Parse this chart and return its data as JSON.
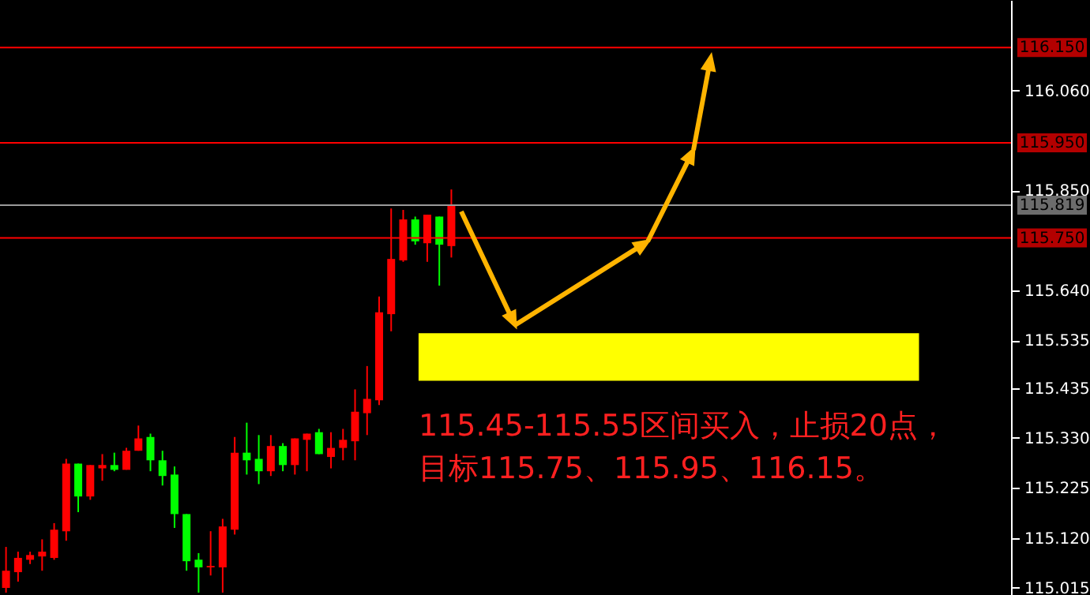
{
  "chart_data": {
    "type": "candlestick",
    "categories": [
      null,
      null,
      null,
      null,
      null,
      null,
      null,
      null,
      null,
      null,
      null,
      null,
      null,
      null,
      null,
      null,
      null,
      null,
      null,
      null,
      null,
      null,
      null,
      null,
      null,
      null,
      null,
      null,
      null,
      null,
      null,
      null,
      null,
      null,
      null,
      null,
      null,
      null,
      null,
      null,
      null,
      null,
      null,
      null,
      null,
      null,
      null,
      null,
      null,
      null,
      null,
      null,
      null,
      null,
      null,
      null,
      null,
      null,
      null,
      null,
      null,
      null,
      null,
      null,
      null,
      null,
      null,
      null,
      null,
      null,
      null,
      null,
      null,
      null,
      null,
      null,
      null,
      null,
      null,
      null,
      null,
      null,
      null,
      null
    ],
    "ohlc": [
      [
        115.015,
        115.101,
        115.005,
        115.051
      ],
      [
        115.048,
        115.091,
        115.028,
        115.078
      ],
      [
        115.074,
        115.091,
        115.065,
        115.084
      ],
      [
        115.081,
        115.117,
        115.051,
        115.091
      ],
      [
        115.078,
        115.151,
        115.074,
        115.137
      ],
      [
        115.134,
        115.286,
        115.114,
        115.276
      ],
      [
        115.276,
        115.276,
        115.174,
        115.207
      ],
      [
        115.207,
        115.273,
        115.2,
        115.273
      ],
      [
        115.266,
        115.296,
        115.24,
        115.273
      ],
      [
        115.273,
        115.299,
        115.26,
        115.263
      ],
      [
        115.263,
        115.309,
        115.263,
        115.303
      ],
      [
        115.303,
        115.356,
        115.303,
        115.329
      ],
      [
        115.332,
        115.339,
        115.26,
        115.283
      ],
      [
        115.283,
        115.303,
        115.23,
        115.25
      ],
      [
        115.253,
        115.27,
        115.141,
        115.17
      ],
      [
        115.17,
        115.17,
        115.051,
        115.071
      ],
      [
        115.074,
        115.088,
        115.005,
        115.058
      ],
      [
        115.058,
        115.134,
        115.041,
        115.061
      ],
      [
        115.058,
        115.16,
        115.005,
        115.144
      ],
      [
        115.137,
        115.332,
        115.127,
        115.299
      ],
      [
        115.299,
        115.362,
        115.253,
        115.283
      ],
      [
        115.286,
        115.336,
        115.233,
        115.26
      ],
      [
        115.26,
        115.336,
        115.25,
        115.313
      ],
      [
        115.313,
        115.319,
        115.26,
        115.273
      ],
      [
        115.273,
        115.329,
        115.253,
        115.329
      ],
      [
        115.326,
        115.339,
        115.26,
        115.339
      ],
      [
        115.342,
        115.349,
        115.296,
        115.296
      ],
      [
        115.29,
        115.342,
        115.266,
        115.309
      ],
      [
        115.309,
        115.349,
        115.283,
        115.326
      ],
      [
        115.323,
        115.432,
        115.283,
        115.385
      ],
      [
        115.382,
        115.481,
        115.336,
        115.412
      ],
      [
        115.409,
        115.627,
        115.399,
        115.594
      ],
      [
        115.59,
        115.812,
        115.554,
        115.706
      ],
      [
        115.703,
        115.809,
        115.7,
        115.789
      ],
      [
        115.789,
        115.795,
        115.736,
        115.743
      ],
      [
        115.739,
        115.799,
        115.7,
        115.799
      ],
      [
        115.795,
        115.795,
        115.65,
        115.736
      ],
      [
        115.733,
        115.852,
        115.709,
        115.819
      ],
      null,
      null,
      null,
      null,
      null,
      null,
      null,
      null,
      null,
      null,
      null,
      null,
      null,
      null,
      null,
      null,
      null,
      null,
      null,
      null,
      null,
      null,
      null,
      null,
      null,
      null,
      null,
      null,
      null,
      null,
      null,
      null,
      null,
      null,
      null,
      null,
      null,
      null,
      null,
      null,
      null,
      null,
      null,
      null,
      null,
      null
    ],
    "colors": [
      "#ff0000",
      "#ff0000",
      "#ff0000",
      "#ff0000",
      "#ff0000",
      "#ff0000",
      "#00ff00",
      "#ff0000",
      "#ff0000",
      "#00ff00",
      "#ff0000",
      "#ff0000",
      "#00ff00",
      "#00ff00",
      "#00ff00",
      "#00ff00",
      "#00ff00",
      "#ff0000",
      "#ff0000",
      "#ff0000",
      "#00ff00",
      "#00ff00",
      "#ff0000",
      "#00ff00",
      "#ff0000",
      "#ff0000",
      "#00ff00",
      "#ff0000",
      "#ff0000",
      "#ff0000",
      "#ff0000",
      "#ff0000",
      "#ff0000",
      "#ff0000",
      "#00ff00",
      "#ff0000",
      "#00ff00",
      "#ff0000",
      null,
      null,
      null,
      null,
      null,
      null,
      null,
      null,
      null,
      null,
      null,
      null,
      null,
      null,
      null,
      null,
      null,
      null,
      null,
      null,
      null,
      null,
      null,
      null,
      null,
      null,
      null,
      null,
      null,
      null,
      null,
      null,
      null,
      null,
      null,
      null,
      null,
      null,
      null,
      null,
      null,
      null,
      null,
      null,
      null,
      null
    ],
    "ylim": [
      115.0,
      116.25
    ],
    "yticks": [
      {
        "value": 116.06,
        "label": "116.060"
      },
      {
        "value": 115.85,
        "label": "115.850"
      },
      {
        "value": 115.64,
        "label": "115.640"
      },
      {
        "value": 115.535,
        "label": "115.535"
      },
      {
        "value": 115.435,
        "label": "115.435"
      },
      {
        "value": 115.33,
        "label": "115.330"
      },
      {
        "value": 115.225,
        "label": "115.225"
      },
      {
        "value": 115.12,
        "label": "115.120"
      },
      {
        "value": 115.015,
        "label": "115.015"
      }
    ],
    "ref_lines": [
      {
        "axis": "y",
        "value": 116.15,
        "label": "116.150",
        "color": "#ff0000"
      },
      {
        "axis": "y",
        "value": 115.95,
        "label": "115.950",
        "color": "#ff0000"
      },
      {
        "axis": "y",
        "value": 115.819,
        "label": "115.819",
        "color": "#9a9a9a"
      },
      {
        "axis": "y",
        "value": 115.75,
        "label": "115.750",
        "color": "#ff0000"
      }
    ],
    "bands": [
      {
        "axis": "y",
        "from": 115.45,
        "to": 115.55,
        "color": "#ffff00"
      }
    ],
    "annotations": [
      "115.45-115.55区间买入，止损20点，",
      "目标115.75、115.95、116.15。"
    ],
    "grid": false
  }
}
